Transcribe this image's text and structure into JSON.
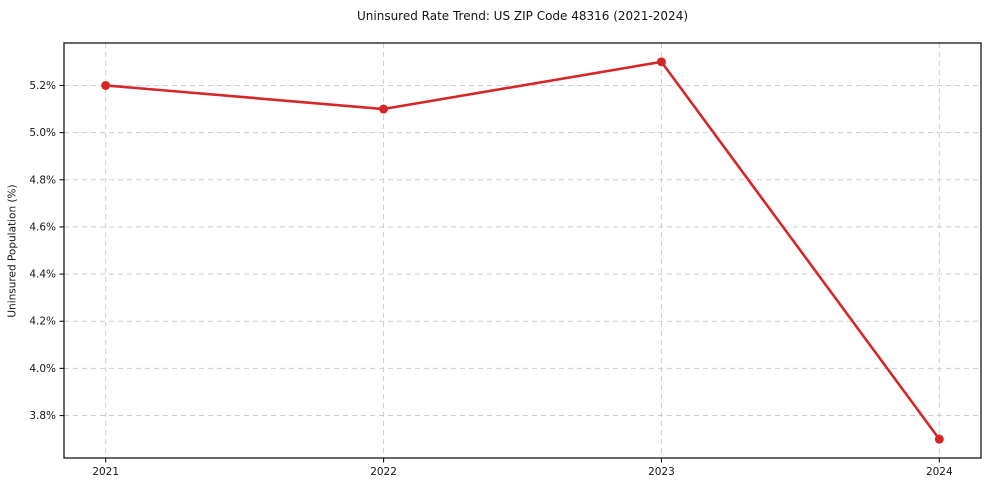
{
  "figure": {
    "background": "#ffffff"
  },
  "chart_data": {
    "type": "line",
    "title": "Uninsured Rate Trend: US ZIP Code 48316 (2021-2024)",
    "xlabel": "",
    "ylabel": "Uninsured Population (%)",
    "x": [
      2021,
      2022,
      2023,
      2024
    ],
    "series": [
      {
        "values": [
          5.2,
          5.1,
          5.3,
          3.7
        ],
        "color": "#d62728"
      }
    ],
    "xticks": {
      "values": [
        2021,
        2022,
        2023,
        2024
      ],
      "labels": [
        "2021",
        "2022",
        "2023",
        "2024"
      ]
    },
    "yticks": {
      "values": [
        3.8,
        4.0,
        4.2,
        4.4,
        4.6,
        4.8,
        5.0,
        5.2
      ],
      "labels": [
        "3.8%",
        "4.0%",
        "4.2%",
        "4.4%",
        "4.6%",
        "4.8%",
        "5.0%",
        "5.2%"
      ]
    },
    "xlim": [
      2020.85,
      2024.15
    ],
    "ylim": [
      3.62,
      5.38
    ],
    "grid": true,
    "grid_color": "#cdcdcd",
    "spine_color": "#161616",
    "line_width": 2.6,
    "marker": "circle",
    "marker_size": 4.5,
    "legend": false
  }
}
